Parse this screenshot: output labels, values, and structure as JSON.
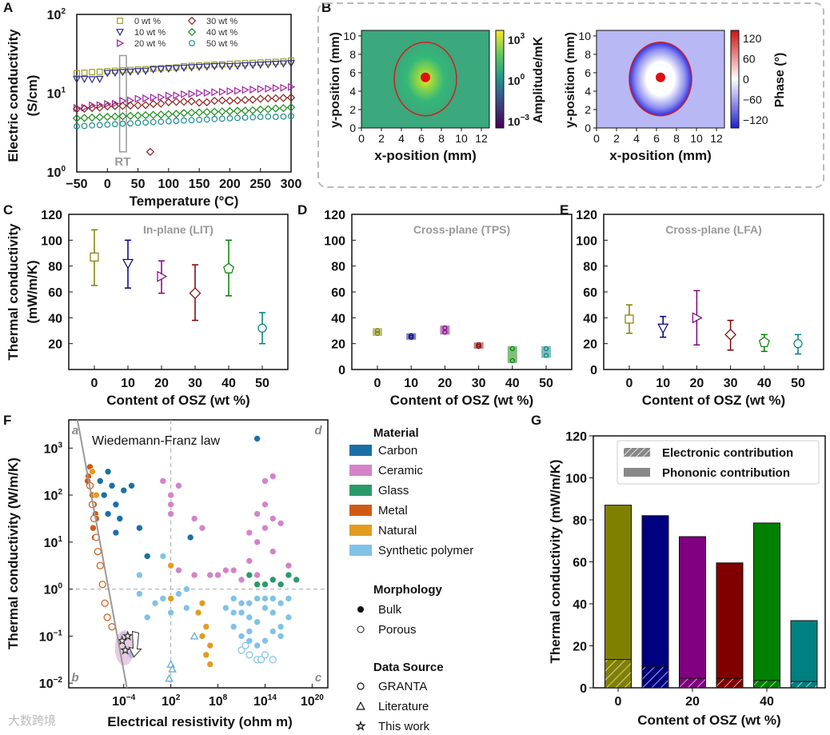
{
  "panel_labels": [
    "A",
    "B",
    "C",
    "D",
    "E",
    "F",
    "G"
  ],
  "watermark": "大数跨境",
  "chart_data": [
    {
      "panel": "A",
      "type": "scatter",
      "title": "",
      "xlabel": "Temperature (°C)",
      "ylabel": "Electric conductivity",
      "ylabel2": "(S/cm)",
      "xlim": [
        -50,
        300
      ],
      "ylim": [
        1,
        100
      ],
      "yscale": "log",
      "xticks": [
        -50,
        0,
        50,
        100,
        150,
        200,
        250,
        300
      ],
      "yticks": [
        {
          "v": 1,
          "base": "10",
          "exp": "0"
        },
        {
          "v": 10,
          "base": "10",
          "exp": "1"
        },
        {
          "v": 100,
          "base": "10",
          "exp": "2"
        }
      ],
      "annotation": "RT",
      "legend_position": "top",
      "x": [
        -50,
        -25,
        0,
        25,
        50,
        75,
        100,
        125,
        150,
        175,
        200,
        225,
        250,
        275,
        300
      ],
      "series": [
        {
          "name": "0 wt %",
          "color": "#9c9c28",
          "marker": "square",
          "values": [
            18,
            18.5,
            19,
            19.5,
            20,
            20.5,
            21,
            22,
            22.5,
            23,
            23.5,
            24,
            24.5,
            25,
            26
          ]
        },
        {
          "name": "10 wt %",
          "color": "#2a2a8c",
          "marker": "triangle-down",
          "values": [
            15,
            15,
            18,
            18.5,
            19,
            20,
            20.5,
            21,
            21.5,
            22,
            22,
            22.5,
            23,
            23.5,
            24
          ]
        },
        {
          "name": "20 wt %",
          "color": "#a020a0",
          "marker": "triangle-right",
          "values": [
            6.5,
            7,
            7.3,
            8,
            8.5,
            8.8,
            9.3,
            9.7,
            10,
            10.3,
            10.6,
            11,
            11.3,
            11.6,
            12
          ]
        },
        {
          "name": "30 wt %",
          "color": "#8b2020",
          "marker": "diamond",
          "values": [
            6.3,
            6.5,
            6.8,
            6.9,
            7,
            7.3,
            7.7,
            7.8,
            7.6,
            8,
            8,
            8.2,
            8.5,
            8.6,
            8.8
          ]
        },
        {
          "name": "40 wt %",
          "color": "#1a8a1a",
          "marker": "diamond",
          "values": [
            4.8,
            4.9,
            5,
            5.1,
            5.2,
            5.3,
            5.4,
            5.6,
            5.7,
            5.8,
            5.9,
            6,
            6.2,
            6.4,
            6.6
          ]
        },
        {
          "name": "50 wt %",
          "color": "#1a8a8a",
          "marker": "circle",
          "values": [
            3.8,
            3.9,
            4,
            4.1,
            4.2,
            4.3,
            4.4,
            4.5,
            4.6,
            4.7,
            4.8,
            4.9,
            5,
            5,
            5.1
          ]
        }
      ],
      "outliers": [
        {
          "series": "30 wt %",
          "x": 70,
          "y": 1.8
        }
      ]
    },
    {
      "panel": "B",
      "type": "heatmap",
      "maps": [
        {
          "name": "amplitude",
          "xlabel": "x-position (mm)",
          "ylabel": "y-position (mm)",
          "xticks": [
            0,
            2,
            4,
            6,
            8,
            10,
            12
          ],
          "yticks": [
            0,
            2,
            4,
            6,
            8,
            10
          ],
          "colorbar_label": "Amplitude/mK",
          "colorbar_ticks": [
            {
              "base": "10",
              "exp": "3"
            },
            {
              "base": "10",
              "exp": "0"
            },
            {
              "base": "10",
              "exp": "−3"
            }
          ],
          "center": [
            6.4,
            5.5
          ]
        },
        {
          "name": "phase",
          "xlabel": "x-position (mm)",
          "ylabel": "y-position (mm)",
          "xticks": [
            0,
            2,
            4,
            6,
            8,
            10,
            12
          ],
          "yticks": [
            0,
            2,
            4,
            6,
            8,
            10
          ],
          "colorbar_label": "Phase (°)",
          "colorbar_ticks": [
            "120",
            "60",
            "0",
            "−60",
            "−120"
          ],
          "center": [
            6.4,
            5.5
          ]
        }
      ]
    },
    {
      "panel": "C",
      "type": "scatter",
      "title": "In-plane (LIT)",
      "xlabel": "Content of OSZ (wt %)",
      "ylabel": "Thermal conductivity",
      "ylabel2": "(mW/m/K)",
      "ylim": [
        0,
        120
      ],
      "yticks": [
        20,
        40,
        60,
        80,
        100,
        120
      ],
      "categories": [
        "0",
        "10",
        "20",
        "30",
        "40",
        "50"
      ],
      "values": [
        87,
        82,
        72,
        59,
        78,
        32
      ],
      "err_low": [
        65,
        63,
        59,
        38,
        57,
        20
      ],
      "err_high": [
        108,
        100,
        84,
        81,
        100,
        44
      ]
    },
    {
      "panel": "D",
      "type": "scatter",
      "title": "Cross-plane (TPS)",
      "xlabel": "Content of OSZ (wt %)",
      "ylim": [
        0,
        120
      ],
      "yticks": [
        0,
        20,
        40,
        60,
        80,
        100,
        120
      ],
      "categories": [
        "0",
        "10",
        "20",
        "30",
        "40",
        "50"
      ],
      "values": [
        29,
        25,
        31,
        19,
        12,
        13
      ],
      "err_low": [
        26,
        23,
        27,
        16,
        5,
        9
      ],
      "err_high": [
        32,
        28,
        34,
        21,
        18,
        18
      ]
    },
    {
      "panel": "E",
      "type": "scatter",
      "title": "Cross-plane (LFA)",
      "xlabel": "Content of OSZ (wt %)",
      "ylim": [
        0,
        120
      ],
      "yticks": [
        0,
        20,
        40,
        60,
        80,
        100,
        120
      ],
      "categories": [
        "0",
        "10",
        "20",
        "30",
        "40",
        "50"
      ],
      "values": [
        39,
        32,
        40,
        27,
        21,
        20
      ],
      "err_low": [
        28,
        25,
        19,
        15,
        14,
        12
      ],
      "err_high": [
        50,
        41,
        61,
        38,
        27,
        27
      ]
    },
    {
      "panel": "F",
      "type": "scatter",
      "xlabel": "Electrical resistivity (ohm m)",
      "ylabel": "Thermal conductivity (W/m/K)",
      "xscale": "log",
      "yscale": "log",
      "note": "points given as log10 values",
      "xlim_log10": [
        -11,
        22
      ],
      "ylim_log10": [
        -2.1,
        3.6
      ],
      "xticks": [
        {
          "base": "10",
          "exp": "−4",
          "v": -4
        },
        {
          "base": "10",
          "exp": "2",
          "v": 2
        },
        {
          "base": "10",
          "exp": "8",
          "v": 8
        },
        {
          "base": "10",
          "exp": "14",
          "v": 14
        },
        {
          "base": "10",
          "exp": "20",
          "v": 20
        }
      ],
      "yticks": [
        {
          "base": "10",
          "exp": "3",
          "v": 3
        },
        {
          "base": "10",
          "exp": "2",
          "v": 2
        },
        {
          "base": "10",
          "exp": "1",
          "v": 1
        },
        {
          "base": "10",
          "exp": "0",
          "v": 0
        },
        {
          "base": "10",
          "exp": "−1",
          "v": -1
        },
        {
          "base": "10",
          "exp": "−2",
          "v": -2
        }
      ],
      "annotation": "Wiedemann-Franz law",
      "quadrants": [
        "a",
        "b",
        "c",
        "d"
      ],
      "legend": {
        "material_title": "Material",
        "morphology_title": "Morphology",
        "source_title": "Data Source",
        "morphology": [
          "Bulk",
          "Porous"
        ],
        "sources": [
          {
            "label": "GRANTA",
            "marker": "circle"
          },
          {
            "label": "Literature",
            "marker": "triangle"
          },
          {
            "label": "This work",
            "marker": "star"
          }
        ]
      },
      "materials": [
        {
          "name": "Carbon",
          "color": "#1b6fa6",
          "points": [
            [
              -6,
              2.5
            ],
            [
              -5.5,
              2.2
            ],
            [
              -5,
              1.8
            ],
            [
              -6,
              1.6
            ],
            [
              -4,
              2.1
            ],
            [
              -3,
              2.2
            ],
            [
              -2,
              1.3
            ],
            [
              -1,
              0.7
            ],
            [
              -5,
              1.2
            ],
            [
              4.5,
              1.1
            ],
            [
              13,
              3.2
            ],
            [
              -7,
              2.3
            ],
            [
              -4.5,
              1.5
            ],
            [
              -6.5,
              2.0
            ]
          ]
        },
        {
          "name": "Ceramic",
          "color": "#d582c9",
          "points": [
            [
              1,
              2.3
            ],
            [
              2,
              2
            ],
            [
              2,
              1.8
            ],
            [
              3,
              2.2
            ],
            [
              2,
              1.6
            ],
            [
              5,
              1.5
            ],
            [
              6,
              1.3
            ],
            [
              8,
              0.3
            ],
            [
              10,
              0.4
            ],
            [
              12,
              1.2
            ],
            [
              13,
              1.6
            ],
            [
              14,
              2.3
            ],
            [
              15,
              1.5
            ],
            [
              14,
              1.3
            ],
            [
              16,
              1.4
            ],
            [
              12,
              0.6
            ],
            [
              7,
              0.3
            ],
            [
              9,
              0.4
            ],
            [
              11,
              0.2
            ],
            [
              13,
              0.3
            ],
            [
              15,
              0.8
            ],
            [
              17,
              0.5
            ],
            [
              3,
              0.4
            ],
            [
              5,
              0.3
            ],
            [
              14,
              1.8
            ],
            [
              15,
              2.4
            ],
            [
              13,
              1.0
            ]
          ]
        },
        {
          "name": "Glass",
          "color": "#2a9a6a",
          "points": [
            [
              12,
              0.3
            ],
            [
              14,
              0.1
            ],
            [
              15,
              0.2
            ],
            [
              17,
              0.3
            ],
            [
              16,
              0.1
            ],
            [
              13,
              0.1
            ],
            [
              18,
              0.2
            ]
          ]
        },
        {
          "name": "Metal",
          "color": "#d05a14",
          "points": [
            [
              -8.5,
              2.4
            ],
            [
              -8.2,
              2.2
            ],
            [
              -8,
              2
            ],
            [
              -7.8,
              1.8
            ],
            [
              -7.6,
              1.6
            ],
            [
              -7.9,
              1.3
            ],
            [
              -7.7,
              1.1
            ],
            [
              -8.3,
              2.6
            ],
            [
              -8.6,
              2.3
            ],
            [
              -7.5,
              1.5
            ]
          ]
        },
        {
          "name": "Natural",
          "color": "#e29c22",
          "points": [
            [
              -8,
              2.5
            ],
            [
              -7.5,
              2
            ],
            [
              2,
              0.5
            ],
            [
              6,
              -0.3
            ],
            [
              6.5,
              -0.8
            ],
            [
              7,
              -1.2
            ],
            [
              6,
              -1
            ],
            [
              5.5,
              -0.5
            ],
            [
              7,
              -1.6
            ],
            [
              2,
              -0.2
            ],
            [
              6.5,
              -1.4
            ]
          ]
        },
        {
          "name": "Synthetic polymer",
          "color": "#80c2e8",
          "points": [
            [
              -2,
              -0.1
            ],
            [
              0,
              -0.3
            ],
            [
              1,
              -0.2
            ],
            [
              2,
              -0.5
            ],
            [
              3,
              -0.1
            ],
            [
              4,
              -0.4
            ],
            [
              -1,
              -0.6
            ],
            [
              10,
              -0.2
            ],
            [
              11,
              -0.5
            ],
            [
              12,
              -0.3
            ],
            [
              13,
              -0.7
            ],
            [
              14,
              -0.4
            ],
            [
              15,
              -0.9
            ],
            [
              16,
              -0.3
            ],
            [
              17,
              -0.6
            ],
            [
              11,
              -1
            ],
            [
              12,
              -0.9
            ],
            [
              13,
              -0.2
            ],
            [
              14,
              -1.1
            ],
            [
              15,
              -0.5
            ],
            [
              16,
              -0.8
            ],
            [
              10,
              -0.8
            ],
            [
              12,
              -0.6
            ],
            [
              14,
              -0.2
            ],
            [
              13,
              -1.2
            ],
            [
              11,
              -0.3
            ],
            [
              15,
              -0.2
            ],
            [
              17,
              -0.2
            ],
            [
              9,
              -0.4
            ],
            [
              10,
              -0.5
            ],
            [
              12,
              -1.1
            ],
            [
              16,
              -1.0
            ],
            [
              -2,
              0.3
            ],
            [
              1,
              0.7
            ],
            [
              4,
              0.0
            ],
            [
              -3,
              -1.4
            ]
          ]
        }
      ],
      "porous_points": [
        {
          "color": "#d05a14",
          "points": [
            [
              -8.3,
              2.2
            ],
            [
              -8,
              1.8
            ],
            [
              -7.8,
              1.5
            ],
            [
              -7.5,
              1.1
            ],
            [
              -7.3,
              0.8
            ],
            [
              -7,
              0.5
            ],
            [
              -6.7,
              0.1
            ],
            [
              -6.4,
              -0.3
            ],
            [
              -6.1,
              -0.6
            ],
            [
              -5.5,
              -0.8
            ]
          ]
        },
        {
          "color": "#80c2e8",
          "points": [
            [
              11,
              -1.3
            ],
            [
              12,
              -1.4
            ],
            [
              13,
              -1.5
            ],
            [
              14,
              -1.4
            ],
            [
              15,
              -1.5
            ],
            [
              11.5,
              -1.2
            ],
            [
              13.5,
              -1.5
            ],
            [
              -4,
              -1.0
            ],
            [
              -3.5,
              -1.3
            ]
          ]
        }
      ],
      "literature_points": [
        [
          2,
          -1.6
        ],
        [
          2.2,
          -1.7
        ],
        [
          1.8,
          -1.9
        ],
        [
          5,
          -1.0
        ]
      ],
      "this_work_points": [
        [
          -4.2,
          -1.1
        ],
        [
          -3.8,
          -1.3
        ],
        [
          -3.5,
          -1.0
        ]
      ]
    },
    {
      "panel": "G",
      "type": "bar",
      "xlabel": "Content of OSZ (wt %)",
      "ylabel": "Thermal conductivity (mW/m/K)",
      "ylim": [
        0,
        120
      ],
      "yticks": [
        0,
        20,
        40,
        60,
        80,
        100,
        120
      ],
      "xticks": [
        "0",
        "20",
        "40"
      ],
      "categories": [
        "0",
        "10",
        "20",
        "30",
        "40",
        "50"
      ],
      "legend_position": "top-right",
      "series": [
        {
          "name": "Electronic contribution",
          "values": [
            13.5,
            10,
            4.5,
            4.5,
            3.5,
            3
          ]
        },
        {
          "name": "Phononic contribution",
          "values": [
            73.5,
            72,
            67.5,
            55,
            75,
            29
          ]
        }
      ],
      "totals": [
        87,
        82,
        72,
        59.5,
        78.5,
        32
      ],
      "colors": [
        "#808000",
        "#000080",
        "#800080",
        "#800000",
        "#008000",
        "#008080"
      ]
    }
  ]
}
